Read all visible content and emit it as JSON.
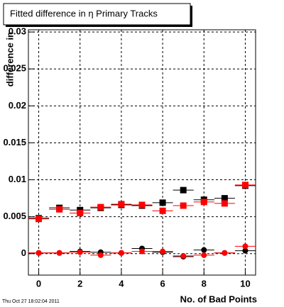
{
  "chart_data": {
    "type": "scatter",
    "title": "Fitted difference in  η Primary Tracks",
    "y_label": "difference in",
    "x_label": "No. of Bad Points",
    "footer": "Thu Oct 27 18:02:04 2011",
    "x": [
      0,
      1,
      2,
      3,
      4,
      5,
      6,
      7,
      8,
      9,
      10
    ],
    "x_error": 0.5,
    "series": [
      {
        "color": "#000000",
        "marker": "square",
        "values": [
          0.0048,
          0.0062,
          0.0059,
          0.0062,
          0.0066,
          0.0065,
          0.0069,
          0.0086,
          0.0073,
          0.0075,
          0.0092
        ]
      },
      {
        "color": "#ff0000",
        "marker": "square",
        "values": [
          0.0047,
          0.006,
          0.0055,
          0.0063,
          0.0067,
          0.0066,
          0.0058,
          0.0065,
          0.007,
          0.0068,
          0.0093
        ]
      },
      {
        "color": "#000000",
        "marker": "circle",
        "values": [
          0.0001,
          0.0001,
          0.0003,
          0.0002,
          0.0001,
          0.0007,
          0.0002,
          -0.0004,
          0.0005,
          0.0001,
          0.0004
        ]
      },
      {
        "color": "#ff0000",
        "marker": "circle",
        "values": [
          0.0001,
          0.0001,
          0.0002,
          -0.0002,
          0.0001,
          0.0003,
          0.0003,
          -0.0003,
          -0.0002,
          0.0001,
          0.001
        ]
      }
    ],
    "xlim": [
      -0.5,
      10.5
    ],
    "ylim": [
      -0.0029,
      0.0303
    ],
    "xticks": [
      0,
      2,
      4,
      6,
      8,
      10
    ],
    "yticks": [
      0,
      0.005,
      0.01,
      0.015,
      0.02,
      0.025,
      0.03
    ],
    "grid": true
  }
}
